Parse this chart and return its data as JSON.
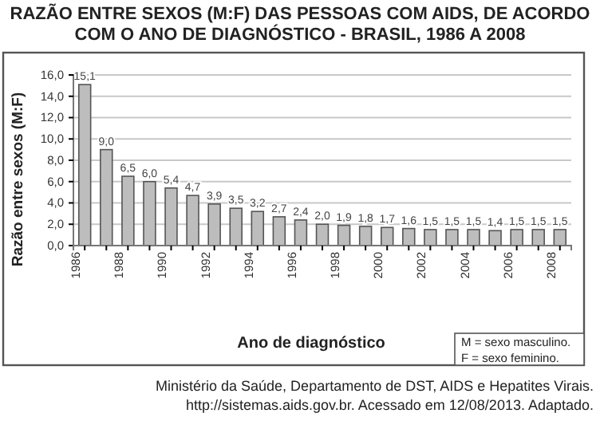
{
  "chart_data": {
    "type": "bar",
    "title": "RAZÃO ENTRE SEXOS (M:F) DAS PESSOAS COM AIDS, DE ACORDO COM O ANO DE DIAGNÓSTICO - BRASIL, 1986 A 2008",
    "xlabel": "Ano de diagnóstico",
    "ylabel": "Razão entre sexos (M:F)",
    "categories": [
      "1986",
      null,
      "1988",
      null,
      "1990",
      null,
      "1992",
      null,
      "1994",
      null,
      "1996",
      null,
      "1998",
      null,
      "2000",
      null,
      "2002",
      null,
      "2004",
      null,
      "2006",
      null,
      "2008"
    ],
    "values": [
      15.1,
      9.0,
      6.5,
      6.0,
      5.4,
      4.7,
      3.9,
      3.5,
      3.2,
      2.7,
      2.4,
      2.0,
      1.9,
      1.8,
      1.7,
      1.6,
      1.5,
      1.5,
      1.5,
      1.4,
      1.5,
      1.5,
      1.5
    ],
    "value_labels": [
      "15,1",
      "9,0",
      "6,5",
      "6,0",
      "5,4",
      "4,7",
      "3,9",
      "3,5",
      "3,2",
      "2,7",
      "2,4",
      "2,0",
      "1,9",
      "1,8",
      "1,7",
      "1,6",
      "1,5",
      "1,5",
      "1,5",
      "1,4",
      "1,5",
      "1,5",
      "1,5"
    ],
    "color": "#bdbdbd",
    "ylim": [
      0,
      16
    ],
    "yticks": [
      {
        "value": 0,
        "label": "0,0"
      },
      {
        "value": 2,
        "label": "2,0"
      },
      {
        "value": 4,
        "label": "4,0"
      },
      {
        "value": 6,
        "label": "6,0"
      },
      {
        "value": 8,
        "label": "8,0"
      },
      {
        "value": 10,
        "label": "10,0"
      },
      {
        "value": 12,
        "label": "12,0"
      },
      {
        "value": 14,
        "label": "14,0"
      },
      {
        "value": 16,
        "label": "16,0"
      }
    ],
    "grid": "y",
    "annotations": [
      "M = sexo masculino.",
      "F  = sexo feminino.",
      "Ministério da Saúde, Departamento de DST, AIDS e Hepatites Virais. http://sistemas.aids.gov.br. Acessado em 12/08/2013. Adaptado."
    ]
  }
}
